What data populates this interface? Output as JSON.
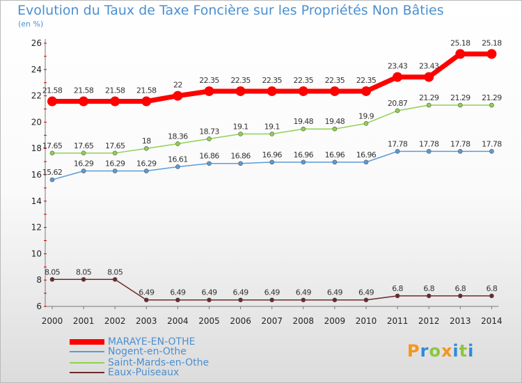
{
  "chart_data": {
    "type": "line",
    "title": "Evolution du Taux de Taxe Foncière sur les Propriétés Non Bâties",
    "unit_label": "(en %)",
    "x": [
      "2000",
      "2001",
      "2002",
      "2003",
      "2004",
      "2005",
      "2006",
      "2007",
      "2008",
      "2009",
      "2010",
      "2011",
      "2012",
      "2013",
      "2014"
    ],
    "yticks": [
      "6",
      "8",
      "10",
      "12",
      "14",
      "16",
      "18",
      "20",
      "22",
      "24",
      "26"
    ],
    "ylim": [
      6,
      26
    ],
    "grid": false,
    "legend_position": "bottom-left",
    "series": [
      {
        "name": "MARAYE-EN-OTHE",
        "color": "#ff0000",
        "values": [
          21.58,
          21.58,
          21.58,
          21.58,
          22,
          22.35,
          22.35,
          22.35,
          22.35,
          22.35,
          22.35,
          23.43,
          23.43,
          25.18,
          25.18
        ]
      },
      {
        "name": "Nogent-en-Othe",
        "color": "#5b9bd5",
        "values": [
          15.62,
          16.29,
          16.29,
          16.29,
          16.61,
          16.86,
          16.86,
          16.96,
          16.96,
          16.96,
          16.96,
          17.78,
          17.78,
          17.78,
          17.78
        ]
      },
      {
        "name": "Saint-Mards-en-Othe",
        "color": "#8fd14f",
        "values": [
          17.65,
          17.65,
          17.65,
          18,
          18.36,
          18.73,
          19.1,
          19.1,
          19.48,
          19.48,
          19.9,
          20.87,
          21.29,
          21.29,
          21.29
        ]
      },
      {
        "name": "Eaux-Puiseaux",
        "color": "#6b2a2a",
        "values": [
          8.05,
          8.05,
          8.05,
          6.49,
          6.49,
          6.49,
          6.49,
          6.49,
          6.49,
          6.49,
          6.49,
          6.8,
          6.8,
          6.8,
          6.8
        ]
      }
    ],
    "data_labels": [
      [
        "21.58",
        "21.58",
        "21.58",
        "21.58",
        "22",
        "22.35",
        "22.35",
        "22.35",
        "22.35",
        "22.35",
        "22.35",
        "23.43",
        "23.43",
        "25.18",
        "25.18"
      ],
      [
        "15.62",
        "16.29",
        "16.29",
        "16.29",
        "16.61",
        "16.86",
        "16.86",
        "16.96",
        "16.96",
        "16.96",
        "16.96",
        "17.78",
        "17.78",
        "17.78",
        "17.78"
      ],
      [
        "17.65",
        "17.65",
        "17.65",
        "18",
        "18.36",
        "18.73",
        "19.1",
        "19.1",
        "19.48",
        "19.48",
        "19.9",
        "20.87",
        "21.29",
        "21.29",
        "21.29"
      ],
      [
        "8.05",
        "8.05",
        "8.05",
        "6.49",
        "6.49",
        "6.49",
        "6.49",
        "6.49",
        "6.49",
        "6.49",
        "6.49",
        "6.8",
        "6.8",
        "6.8",
        "6.8"
      ]
    ]
  },
  "logo": {
    "text": "Proxiti",
    "letters": [
      "P",
      "r",
      "o",
      "x",
      "i",
      "t",
      "i"
    ],
    "colors": [
      "#f7941d",
      "#2e8bd6",
      "#8cc63f",
      "#f7941d",
      "#2e8bd6",
      "#8cc63f",
      "#2e8bd6"
    ]
  }
}
